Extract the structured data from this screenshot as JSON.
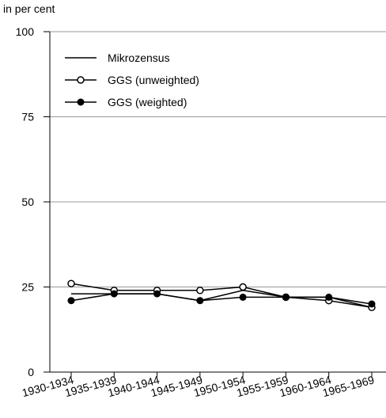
{
  "chart_data": {
    "type": "line",
    "y_label": "in per cent",
    "categories": [
      "1930-1934",
      "1935-1939",
      "1940-1944",
      "1945-1949",
      "1950-1954",
      "1955-1959",
      "1960-1964",
      "1965-1969"
    ],
    "series": [
      {
        "name": "Mikrozensus",
        "color": "#000000",
        "marker": "none",
        "values": [
          23,
          23,
          23,
          21,
          24,
          22,
          22,
          19
        ]
      },
      {
        "name": "GGS (unweighted)",
        "color": "#000000",
        "marker": "open",
        "values": [
          26,
          24,
          24,
          24,
          25,
          22,
          21,
          19
        ]
      },
      {
        "name": "GGS (weighted)",
        "color": "#000000",
        "marker": "filled",
        "values": [
          21,
          23,
          23,
          21,
          22,
          22,
          22,
          20
        ]
      }
    ],
    "ylim": [
      0,
      100
    ],
    "yticks": [
      0,
      25,
      50,
      75,
      100
    ],
    "grid": true,
    "legend": "upper left"
  }
}
